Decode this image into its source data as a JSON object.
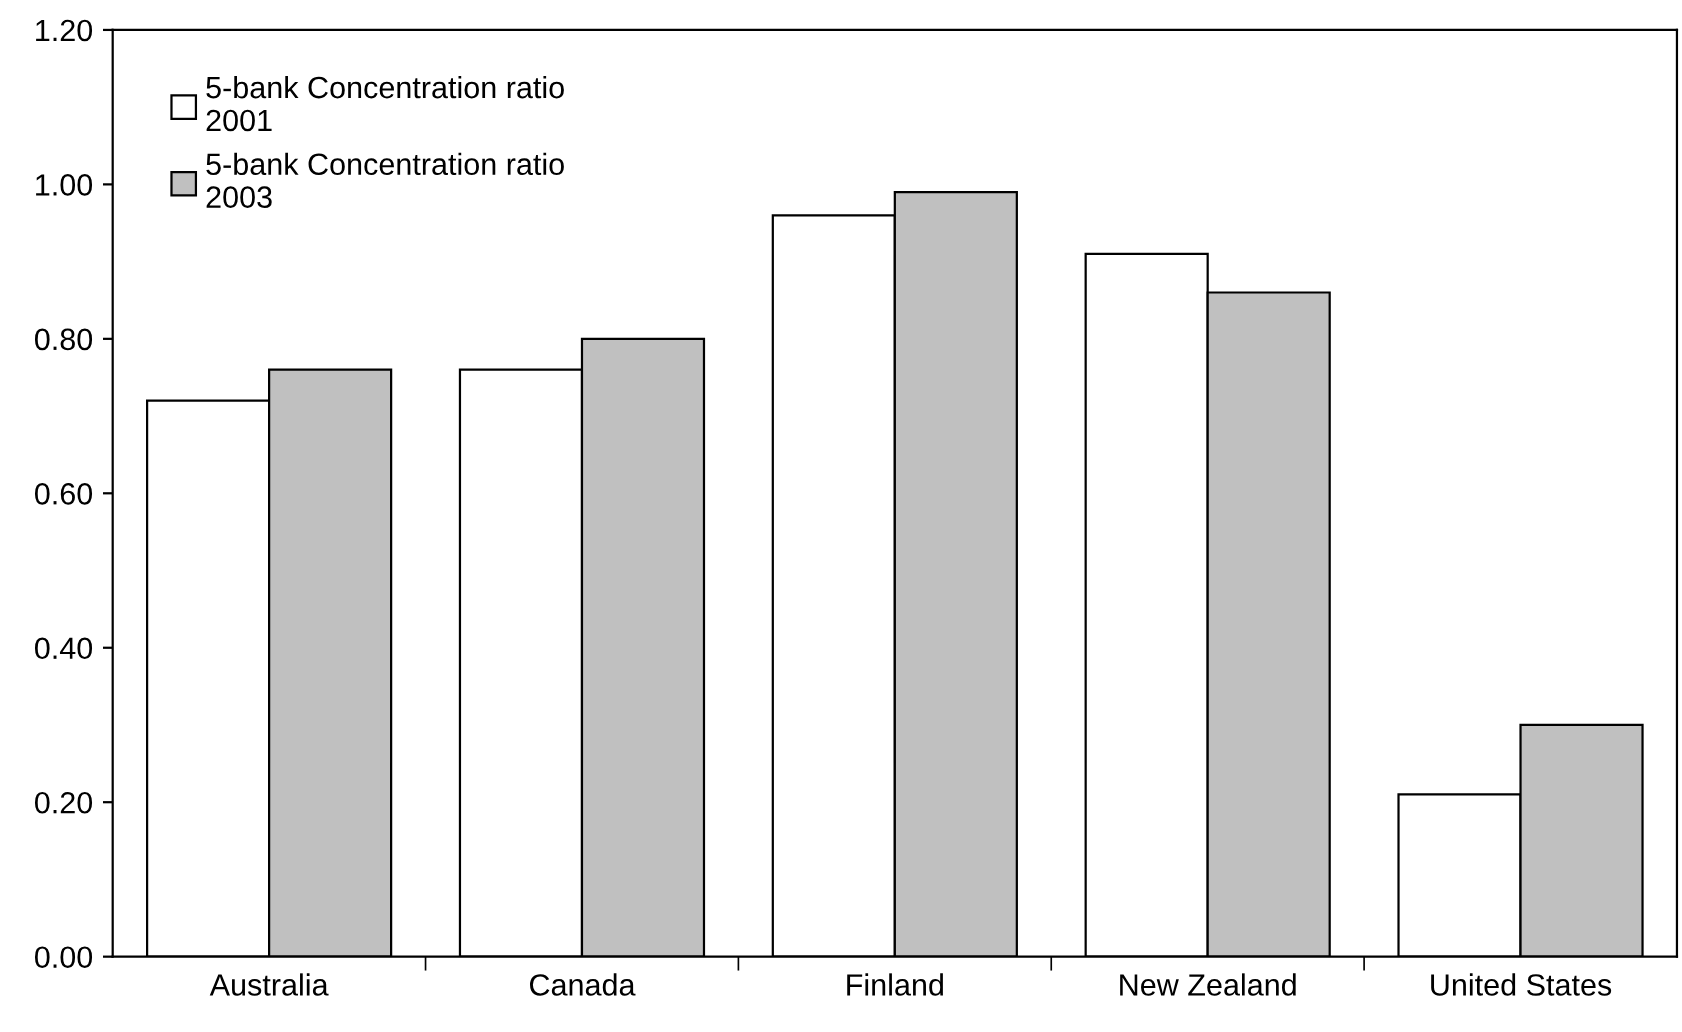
{
  "chart_data": {
    "type": "bar",
    "categories": [
      "Australia",
      "Canada",
      "Finland",
      "New Zealand",
      "United States"
    ],
    "series": [
      {
        "name": "5-bank Concentration ratio\n2001",
        "color": "#ffffff",
        "values": [
          0.72,
          0.76,
          0.96,
          0.91,
          0.21
        ]
      },
      {
        "name": "5-bank Concentration ratio\n2003",
        "color": "#c0c0c0",
        "values": [
          0.76,
          0.8,
          0.99,
          0.86,
          0.3
        ]
      }
    ],
    "ylim": [
      0,
      1.2
    ],
    "yticks": [
      {
        "value": 0,
        "label": "0.00"
      },
      {
        "value": 0.2,
        "label": "0.20"
      },
      {
        "value": 0.4,
        "label": "0.40"
      },
      {
        "value": 0.6,
        "label": "0.60"
      },
      {
        "value": 0.8,
        "label": "0.80"
      },
      {
        "value": 1.0,
        "label": "1.00"
      },
      {
        "value": 1.2,
        "label": "1.20"
      }
    ],
    "grid": false,
    "legend": "top left"
  }
}
